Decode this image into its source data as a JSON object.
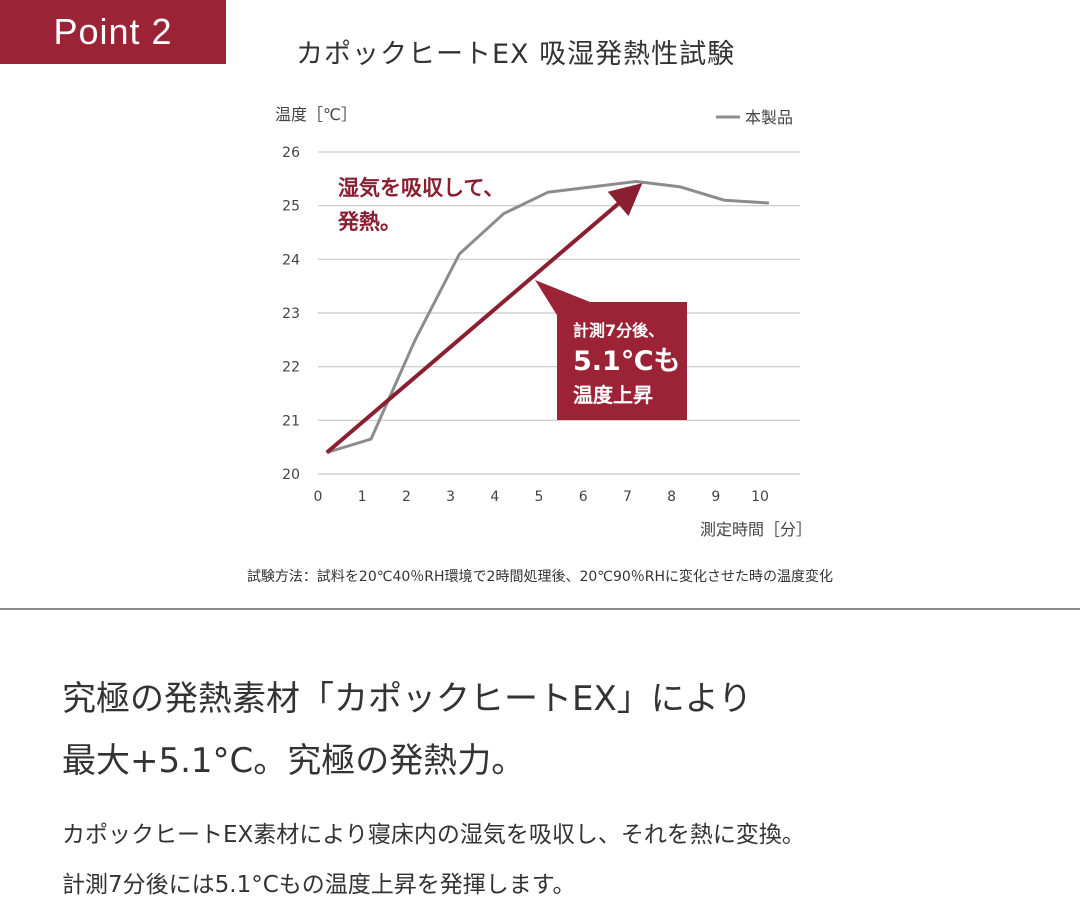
{
  "badge": {
    "label": "Point 2"
  },
  "chart_title": "カポックヒートEX 吸湿発熱性試験",
  "chart_data": {
    "type": "line",
    "title": "カポックヒートEX 吸湿発熱性試験",
    "ylabel": "温度［℃］",
    "xlabel": "測定時間［分］",
    "ylim": [
      20,
      26
    ],
    "xlim": [
      0,
      10
    ],
    "x_ticks": [
      "0",
      "1",
      "2",
      "3",
      "4",
      "5",
      "6",
      "7",
      "8",
      "9",
      "10"
    ],
    "y_ticks": [
      "20",
      "21",
      "22",
      "23",
      "24",
      "25",
      "26"
    ],
    "grid": "horizontal",
    "legend": {
      "position": "top-right",
      "entries": [
        "本製品"
      ]
    },
    "series": [
      {
        "name": "本製品",
        "color": "#8c8c8c",
        "x": [
          0.2,
          1.2,
          2.2,
          3.2,
          4.2,
          5.2,
          6.2,
          7.2,
          8.2,
          9.2,
          10.2
        ],
        "y": [
          20.4,
          20.65,
          22.5,
          24.1,
          24.85,
          25.25,
          25.35,
          25.45,
          25.35,
          25.1,
          25.05
        ]
      }
    ],
    "annotations": {
      "arrow_label_lines": [
        "湿気を吸収して、",
        "発熱。"
      ],
      "arrow": {
        "from": [
          0.2,
          20.4
        ],
        "to": [
          7.2,
          25.3
        ],
        "color": "#8a1f32"
      },
      "callout_lines": [
        "計測7分後、",
        "5.1℃も",
        "温度上昇"
      ],
      "callout_color": "#9b2335"
    }
  },
  "method_note": "試験方法：試料を20℃40％RH環境で2時間処理後、20℃90％RHに変化させた時の温度変化",
  "headline": {
    "line1": "究極の発熱素材「カポックヒートEX」により",
    "line2": "最大+5.1°C。究極の発熱力。"
  },
  "body": {
    "line1": "カポックヒートEX素材により寝床内の湿気を吸収し、それを熱に変換。",
    "line2": "計測7分後には5.1°Cもの温度上昇を発揮します。"
  },
  "colors": {
    "brand": "#9b2335",
    "series": "#8c8c8c",
    "grid": "#c8c8c8"
  }
}
